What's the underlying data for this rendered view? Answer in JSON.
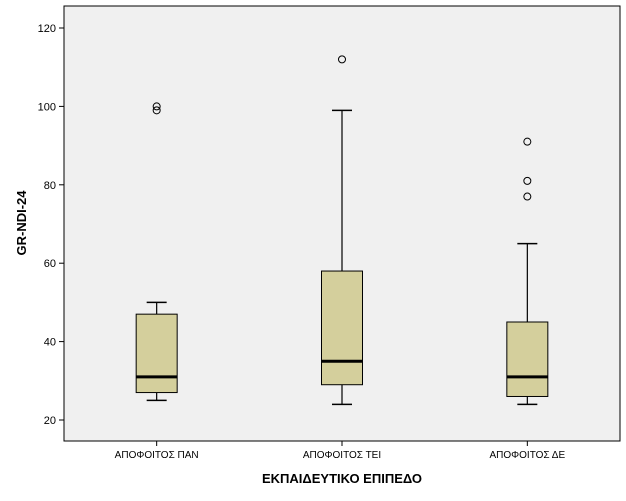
{
  "chart_data": {
    "type": "boxplot",
    "title": "",
    "xlabel": "ΕΚΠΑΙΔΕΥΤΙΚΟ ΕΠΙΠΕΔΟ",
    "ylabel": "GR-NDI-24",
    "ylim": [
      15,
      125
    ],
    "yticks": [
      20,
      40,
      60,
      80,
      100,
      120
    ],
    "yticklabels": [
      "20",
      "40",
      "60",
      "80",
      "100",
      "120"
    ],
    "categories": [
      "ΑΠΟΦΟΙΤΟΣ ΠΑΝ",
      "ΑΠΟΦΟΙΤΟΣ ΤΕΙ",
      "ΑΠΟΦΟΙΤΟΣ ΔΕ"
    ],
    "boxes": [
      {
        "whisker_low": 25,
        "q1": 27,
        "median": 31,
        "q3": 47,
        "whisker_high": 50,
        "outliers": [
          99,
          100
        ]
      },
      {
        "whisker_low": 24,
        "q1": 29,
        "median": 35,
        "q3": 58,
        "whisker_high": 99,
        "outliers": [
          112
        ]
      },
      {
        "whisker_low": 24,
        "q1": 26,
        "median": 31,
        "q3": 45,
        "whisker_high": 65,
        "outliers": [
          77,
          81,
          91
        ]
      }
    ],
    "colors": {
      "plot_bg": "#f0f0f0",
      "box_fill": "#d4cf9c",
      "stroke": "#000000"
    }
  }
}
